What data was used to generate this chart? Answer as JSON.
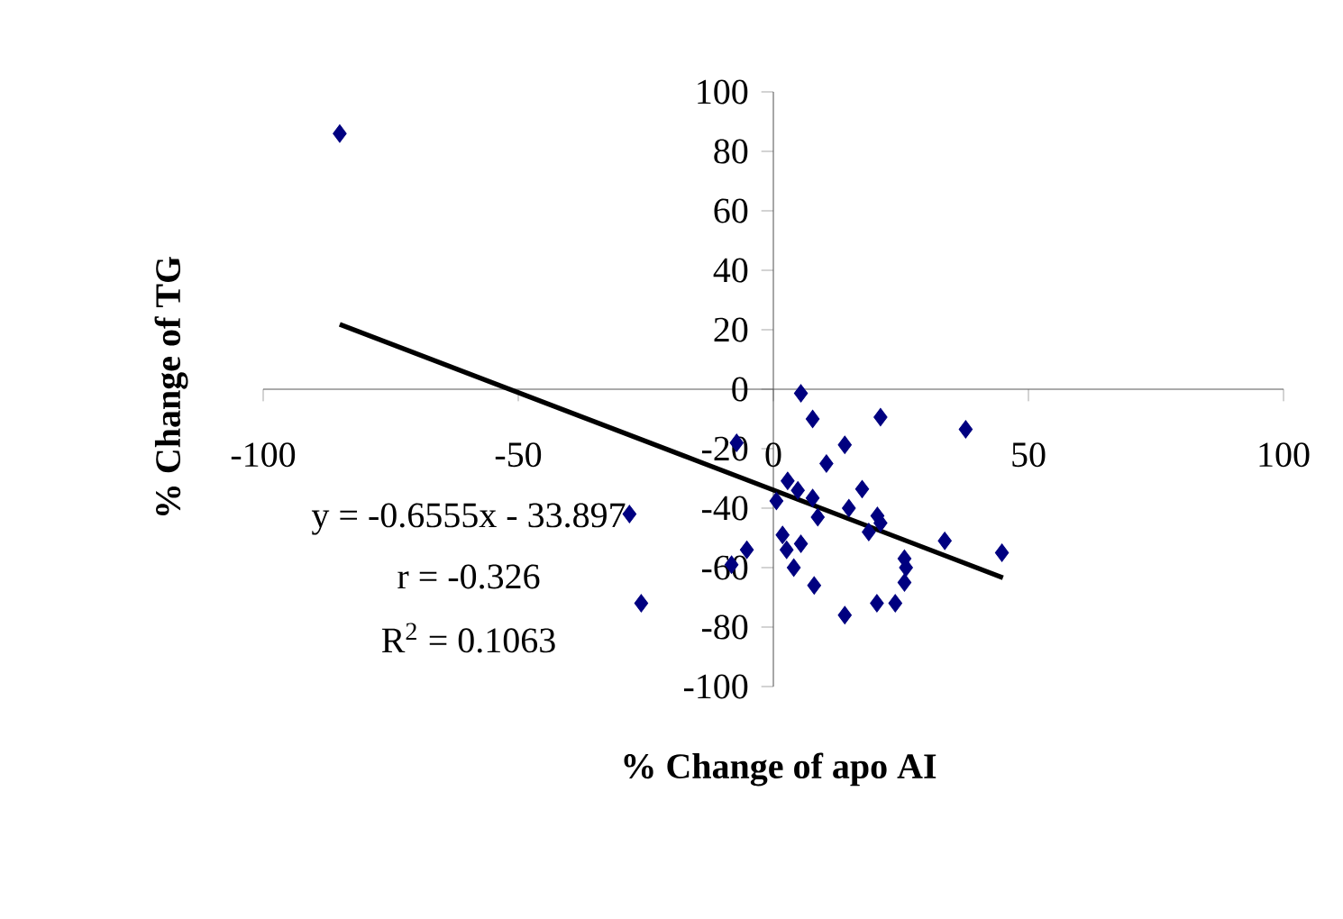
{
  "chart_data": {
    "type": "scatter",
    "xlabel": "% Change of apo AI",
    "ylabel": "% Change of TG",
    "xlim": [
      -100,
      100
    ],
    "ylim": [
      -100,
      100
    ],
    "xticks": [
      -100,
      -50,
      0,
      50,
      100
    ],
    "yticks": [
      -100,
      -80,
      -60,
      -40,
      -20,
      0,
      20,
      40,
      60,
      80,
      100
    ],
    "grid": false,
    "annotations": [
      "y = -0.6555x - 33.897",
      "r = -0.326",
      "R$^{2}$ = 0.1063"
    ],
    "series": [
      {
        "marker": "diamond",
        "color": "#000080",
        "x": [
          -85,
          5.4,
          -7.2,
          7.7,
          21,
          37.7,
          14,
          10.4,
          17.4,
          2.8,
          0.6,
          4.8,
          7.7,
          8.7,
          14.8,
          20.4,
          18.7,
          21,
          1.8,
          5.4,
          2.6,
          4,
          -5.2,
          -8.2,
          8,
          14,
          20.3,
          23.9,
          25.7,
          26,
          25.7,
          33.6,
          44.8,
          -28.2,
          -25.9
        ],
        "values": [
          86,
          -1.4,
          -18,
          -10,
          -9.4,
          -13.5,
          -18.7,
          -25,
          -33.6,
          -30.8,
          -37.6,
          -34,
          -36.6,
          -43,
          -40,
          -42.6,
          -48,
          -45,
          -49,
          -52,
          -54,
          -60,
          -54,
          -59,
          -66,
          -76,
          -72,
          -72,
          -57,
          -60,
          -65,
          -51,
          -55,
          -42,
          -72
        ]
      },
      {
        "type": "line",
        "color": "#000000",
        "x": [
          -85,
          45
        ],
        "values": [
          21.8,
          -63.4
        ]
      }
    ]
  }
}
